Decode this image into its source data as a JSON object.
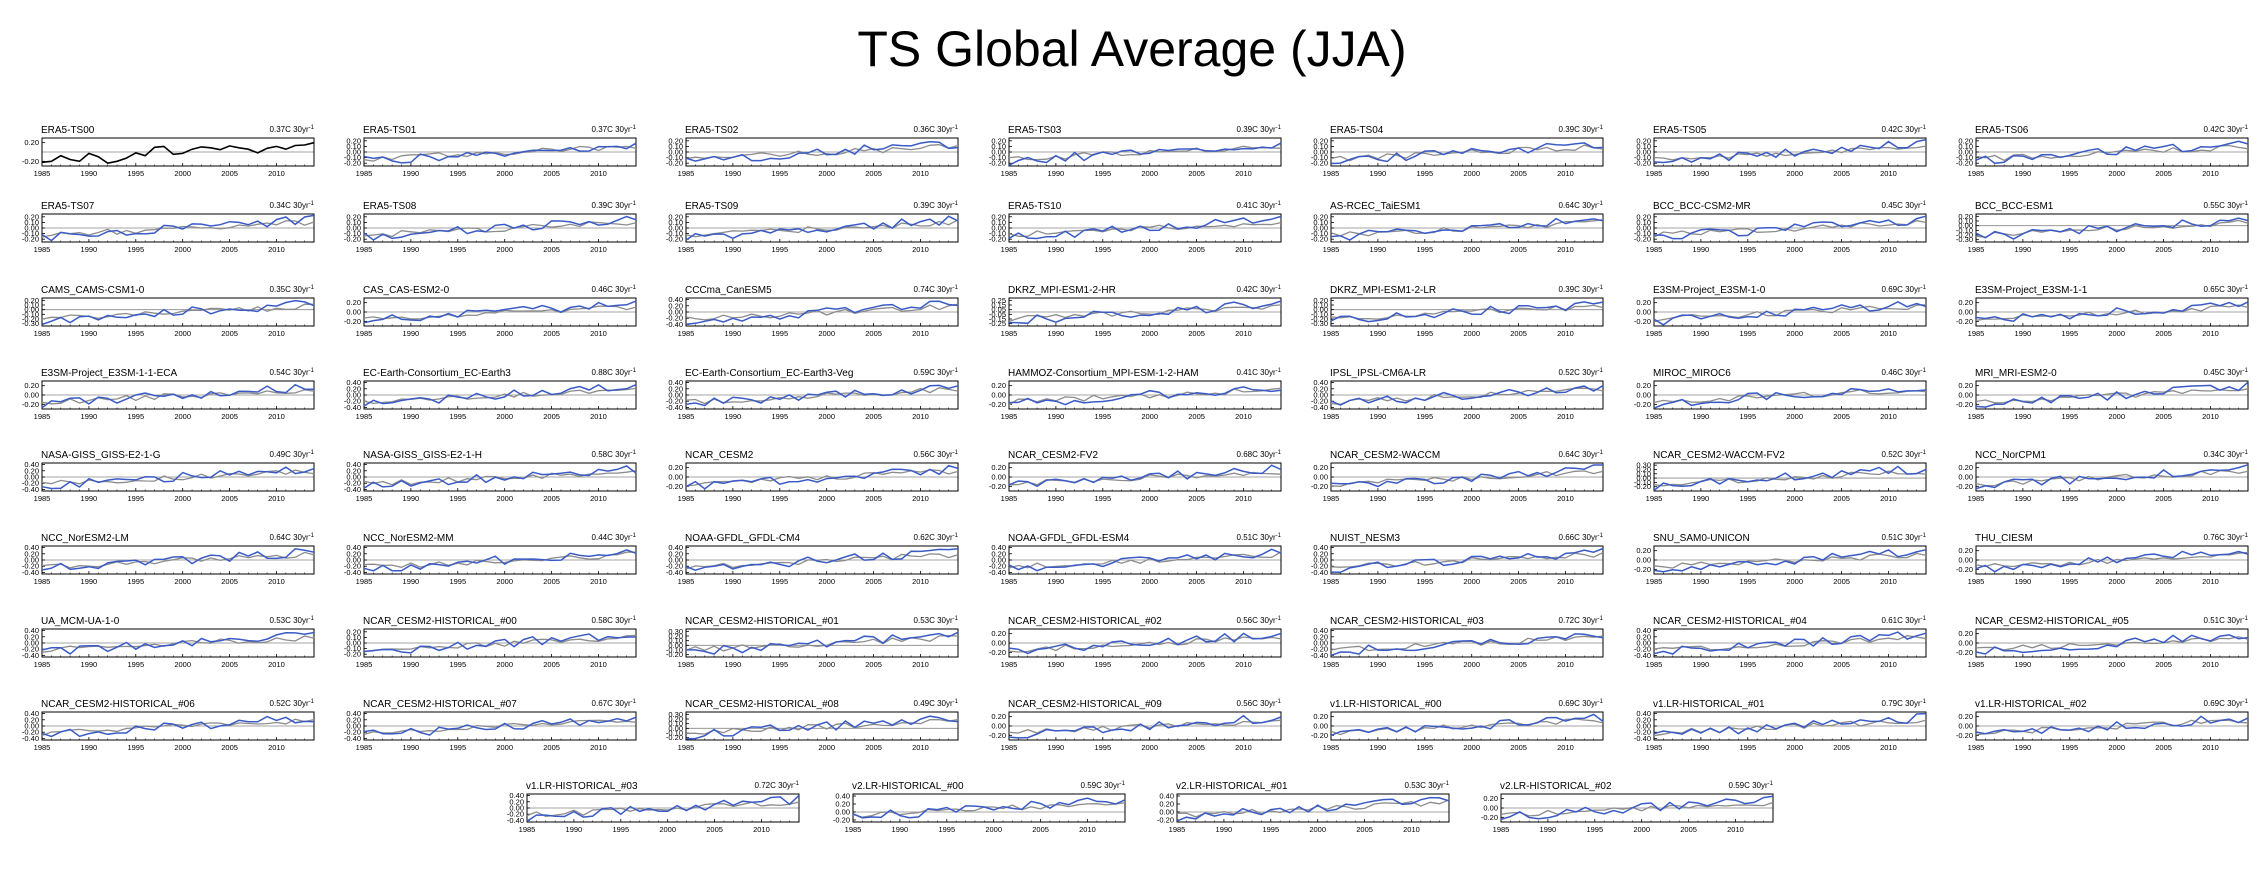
{
  "title": "TS Global Average (JJA)",
  "colors": {
    "reference": "#000000",
    "observation": "#8c8c8c",
    "model": "#3a5bc7",
    "zero": "#888888"
  },
  "chart_data": {
    "type": "line",
    "x_range": [
      1985,
      2014
    ],
    "x_ticks": [
      1985,
      1990,
      1995,
      2000,
      2005,
      2010
    ],
    "x_tick_labels": [
      "1985",
      "1990",
      "1995",
      "2000",
      "2005",
      "2010"
    ],
    "reference_series": "ERA5-TS00",
    "reference_values": [
      -0.22,
      -0.2,
      -0.08,
      -0.16,
      -0.2,
      -0.03,
      -0.1,
      -0.24,
      -0.2,
      -0.13,
      -0.02,
      -0.08,
      0.1,
      0.12,
      -0.05,
      -0.03,
      0.06,
      0.11,
      0.09,
      0.05,
      0.13,
      0.09,
      0.06,
      -0.02,
      0.08,
      0.12,
      0.06,
      0.14,
      0.15,
      0.2
    ],
    "panels": [
      {
        "name": "ERA5-TS00",
        "trend": "0.37C 30yr",
        "ylim": [
          -0.3,
          0.3
        ],
        "yticks": [
          -0.2,
          0.2
        ],
        "reference_only": true
      },
      {
        "name": "ERA5-TS01",
        "trend": "0.37C 30yr",
        "ylim": [
          -0.25,
          0.25
        ],
        "yticks": [
          -0.2,
          -0.1,
          0,
          0.1,
          0.2
        ],
        "seed": 1
      },
      {
        "name": "ERA5-TS02",
        "trend": "0.36C 30yr",
        "ylim": [
          -0.25,
          0.25
        ],
        "yticks": [
          -0.2,
          -0.1,
          0,
          0.1,
          0.2
        ],
        "seed": 2
      },
      {
        "name": "ERA5-TS03",
        "trend": "0.39C 30yr",
        "ylim": [
          -0.25,
          0.25
        ],
        "yticks": [
          -0.2,
          -0.1,
          0,
          0.1,
          0.2
        ],
        "seed": 3
      },
      {
        "name": "ERA5-TS04",
        "trend": "0.39C 30yr",
        "ylim": [
          -0.25,
          0.25
        ],
        "yticks": [
          -0.2,
          -0.1,
          0,
          0.1,
          0.2
        ],
        "seed": 4
      },
      {
        "name": "ERA5-TS05",
        "trend": "0.42C 30yr",
        "ylim": [
          -0.25,
          0.25
        ],
        "yticks": [
          -0.2,
          -0.1,
          0,
          0.1,
          0.2
        ],
        "seed": 5
      },
      {
        "name": "ERA5-TS06",
        "trend": "0.42C 30yr",
        "ylim": [
          -0.25,
          0.25
        ],
        "yticks": [
          -0.2,
          -0.1,
          0,
          0.1,
          0.2
        ],
        "seed": 6
      },
      {
        "name": "ERA5-TS07",
        "trend": "0.34C 30yr",
        "ylim": [
          -0.25,
          0.25
        ],
        "yticks": [
          -0.2,
          -0.1,
          0,
          0.1,
          0.2
        ],
        "seed": 7
      },
      {
        "name": "ERA5-TS08",
        "trend": "0.39C 30yr",
        "ylim": [
          -0.25,
          0.25
        ],
        "yticks": [
          -0.2,
          -0.1,
          0,
          0.1,
          0.2
        ],
        "seed": 8
      },
      {
        "name": "ERA5-TS09",
        "trend": "0.39C 30yr",
        "ylim": [
          -0.25,
          0.25
        ],
        "yticks": [
          -0.2,
          -0.1,
          0,
          0.1,
          0.2
        ],
        "seed": 9
      },
      {
        "name": "ERA5-TS10",
        "trend": "0.41C 30yr",
        "ylim": [
          -0.25,
          0.25
        ],
        "yticks": [
          -0.2,
          -0.1,
          0,
          0.1,
          0.2
        ],
        "seed": 10
      },
      {
        "name": "AS-RCEC_TaiESM1",
        "trend": "0.64C 30yr",
        "ylim": [
          -0.25,
          0.25
        ],
        "yticks": [
          -0.2,
          -0.1,
          0,
          0.1,
          0.2
        ],
        "seed": 11
      },
      {
        "name": "BCC_BCC-CSM2-MR",
        "trend": "0.45C 30yr",
        "ylim": [
          -0.25,
          0.25
        ],
        "yticks": [
          -0.2,
          -0.1,
          0,
          0.1,
          0.2
        ],
        "seed": 12
      },
      {
        "name": "BCC_BCC-ESM1",
        "trend": "0.55C 30yr",
        "ylim": [
          -0.35,
          0.25
        ],
        "yticks": [
          -0.3,
          -0.2,
          -0.1,
          0,
          0.1,
          0.2
        ],
        "seed": 13
      },
      {
        "name": "CAMS_CAMS-CSM1-0",
        "trend": "0.35C 30yr",
        "ylim": [
          -0.35,
          0.25
        ],
        "yticks": [
          -0.3,
          -0.2,
          -0.1,
          0,
          0.1,
          0.2
        ],
        "seed": 14
      },
      {
        "name": "CAS_CAS-ESM2-0",
        "trend": "0.46C 30yr",
        "ylim": [
          -0.3,
          0.3
        ],
        "yticks": [
          -0.2,
          0,
          0.2
        ],
        "seed": 15
      },
      {
        "name": "CCCma_CanESM5",
        "trend": "0.74C 30yr",
        "ylim": [
          -0.45,
          0.45
        ],
        "yticks": [
          -0.4,
          -0.2,
          0,
          0.2,
          0.4
        ],
        "seed": 16
      },
      {
        "name": "DKRZ_MPI-ESM1-2-HR",
        "trend": "0.42C 30yr",
        "ylim": [
          -0.3,
          0.3
        ],
        "yticks": [
          -0.25,
          -0.15,
          -0.05,
          0.05,
          0.15,
          0.25
        ],
        "seed": 17
      },
      {
        "name": "DKRZ_MPI-ESM1-2-LR",
        "trend": "0.39C 30yr",
        "ylim": [
          -0.35,
          0.25
        ],
        "yticks": [
          -0.3,
          -0.2,
          -0.1,
          0,
          0.1,
          0.2
        ],
        "seed": 18
      },
      {
        "name": "E3SM-Project_E3SM-1-0",
        "trend": "0.69C 30yr",
        "ylim": [
          -0.3,
          0.3
        ],
        "yticks": [
          -0.2,
          0,
          0.2
        ],
        "seed": 19
      },
      {
        "name": "E3SM-Project_E3SM-1-1",
        "trend": "0.65C 30yr",
        "ylim": [
          -0.3,
          0.3
        ],
        "yticks": [
          -0.2,
          0,
          0.2
        ],
        "seed": 20
      },
      {
        "name": "E3SM-Project_E3SM-1-1-ECA",
        "trend": "0.54C 30yr",
        "ylim": [
          -0.3,
          0.3
        ],
        "yticks": [
          -0.2,
          0,
          0.2
        ],
        "seed": 21
      },
      {
        "name": "EC-Earth-Consortium_EC-Earth3",
        "trend": "0.88C 30yr",
        "ylim": [
          -0.45,
          0.45
        ],
        "yticks": [
          -0.4,
          -0.2,
          0,
          0.2,
          0.4
        ],
        "seed": 22
      },
      {
        "name": "EC-Earth-Consortium_EC-Earth3-Veg",
        "trend": "0.59C 30yr",
        "ylim": [
          -0.45,
          0.45
        ],
        "yticks": [
          -0.4,
          -0.2,
          0,
          0.2,
          0.4
        ],
        "seed": 23
      },
      {
        "name": "HAMMOZ-Consortium_MPI-ESM-1-2-HAM",
        "trend": "0.41C 30yr",
        "ylim": [
          -0.3,
          0.3
        ],
        "yticks": [
          -0.2,
          0,
          0.2
        ],
        "seed": 24
      },
      {
        "name": "IPSL_IPSL-CM6A-LR",
        "trend": "0.52C 30yr",
        "ylim": [
          -0.45,
          0.45
        ],
        "yticks": [
          -0.4,
          -0.2,
          0,
          0.2,
          0.4
        ],
        "seed": 25
      },
      {
        "name": "MIROC_MIROC6",
        "trend": "0.46C 30yr",
        "ylim": [
          -0.3,
          0.3
        ],
        "yticks": [
          -0.2,
          0,
          0.2
        ],
        "seed": 26
      },
      {
        "name": "MRI_MRI-ESM2-0",
        "trend": "0.45C 30yr",
        "ylim": [
          -0.3,
          0.3
        ],
        "yticks": [
          -0.2,
          0,
          0.2
        ],
        "seed": 27
      },
      {
        "name": "NASA-GISS_GISS-E2-1-G",
        "trend": "0.49C 30yr",
        "ylim": [
          -0.45,
          0.45
        ],
        "yticks": [
          -0.4,
          -0.2,
          0,
          0.2,
          0.4
        ],
        "seed": 28
      },
      {
        "name": "NASA-GISS_GISS-E2-1-H",
        "trend": "0.58C 30yr",
        "ylim": [
          -0.45,
          0.45
        ],
        "yticks": [
          -0.4,
          -0.2,
          0,
          0.2,
          0.4
        ],
        "seed": 29
      },
      {
        "name": "NCAR_CESM2",
        "trend": "0.56C 30yr",
        "ylim": [
          -0.3,
          0.3
        ],
        "yticks": [
          -0.2,
          0,
          0.2
        ],
        "seed": 30
      },
      {
        "name": "NCAR_CESM2-FV2",
        "trend": "0.68C 30yr",
        "ylim": [
          -0.3,
          0.3
        ],
        "yticks": [
          -0.2,
          0,
          0.2
        ],
        "seed": 31
      },
      {
        "name": "NCAR_CESM2-WACCM",
        "trend": "0.64C 30yr",
        "ylim": [
          -0.3,
          0.3
        ],
        "yticks": [
          -0.2,
          0,
          0.2
        ],
        "seed": 32
      },
      {
        "name": "NCAR_CESM2-WACCM-FV2",
        "trend": "0.52C 30yr",
        "ylim": [
          -0.3,
          0.35
        ],
        "yticks": [
          -0.2,
          -0.1,
          0,
          0.1,
          0.2,
          0.3
        ],
        "seed": 33
      },
      {
        "name": "NCC_NorCPM1",
        "trend": "0.34C 30yr",
        "ylim": [
          -0.3,
          0.3
        ],
        "yticks": [
          -0.2,
          0,
          0.2
        ],
        "seed": 34
      },
      {
        "name": "NCC_NorESM2-LM",
        "trend": "0.64C 30yr",
        "ylim": [
          -0.45,
          0.45
        ],
        "yticks": [
          -0.4,
          -0.2,
          0,
          0.2,
          0.4
        ],
        "seed": 35
      },
      {
        "name": "NCC_NorESM2-MM",
        "trend": "0.44C 30yr",
        "ylim": [
          -0.45,
          0.45
        ],
        "yticks": [
          -0.4,
          -0.2,
          0,
          0.2,
          0.4
        ],
        "seed": 36
      },
      {
        "name": "NOAA-GFDL_GFDL-CM4",
        "trend": "0.62C 30yr",
        "ylim": [
          -0.45,
          0.45
        ],
        "yticks": [
          -0.4,
          -0.2,
          0,
          0.2,
          0.4
        ],
        "seed": 37
      },
      {
        "name": "NOAA-GFDL_GFDL-ESM4",
        "trend": "0.51C 30yr",
        "ylim": [
          -0.45,
          0.45
        ],
        "yticks": [
          -0.4,
          -0.2,
          0,
          0.2,
          0.4
        ],
        "seed": 38
      },
      {
        "name": "NUIST_NESM3",
        "trend": "0.66C 30yr",
        "ylim": [
          -0.45,
          0.45
        ],
        "yticks": [
          -0.4,
          -0.2,
          0,
          0.2,
          0.4
        ],
        "seed": 39
      },
      {
        "name": "SNU_SAM0-UNICON",
        "trend": "0.51C 30yr",
        "ylim": [
          -0.3,
          0.3
        ],
        "yticks": [
          -0.2,
          0,
          0.2
        ],
        "seed": 40
      },
      {
        "name": "THU_CIESM",
        "trend": "0.76C 30yr",
        "ylim": [
          -0.3,
          0.3
        ],
        "yticks": [
          -0.2,
          0,
          0.2
        ],
        "seed": 41
      },
      {
        "name": "UA_MCM-UA-1-0",
        "trend": "0.53C 30yr",
        "ylim": [
          -0.45,
          0.45
        ],
        "yticks": [
          -0.4,
          -0.2,
          0,
          0.2,
          0.4
        ],
        "seed": 42
      },
      {
        "name": "NCAR_CESM2-HISTORICAL_#00",
        "trend": "0.58C 30yr",
        "ylim": [
          -0.25,
          0.25
        ],
        "yticks": [
          -0.2,
          -0.1,
          0,
          0.1,
          0.2
        ],
        "seed": 43
      },
      {
        "name": "NCAR_CESM2-HISTORICAL_#01",
        "trend": "0.53C 30yr",
        "ylim": [
          -0.25,
          0.35
        ],
        "yticks": [
          -0.2,
          -0.1,
          0,
          0.1,
          0.2,
          0.3
        ],
        "seed": 44
      },
      {
        "name": "NCAR_CESM2-HISTORICAL_#02",
        "trend": "0.56C 30yr",
        "ylim": [
          -0.3,
          0.3
        ],
        "yticks": [
          -0.2,
          0,
          0.2
        ],
        "seed": 45
      },
      {
        "name": "NCAR_CESM2-HISTORICAL_#03",
        "trend": "0.72C 30yr",
        "ylim": [
          -0.45,
          0.45
        ],
        "yticks": [
          -0.4,
          -0.2,
          0,
          0.2,
          0.4
        ],
        "seed": 46
      },
      {
        "name": "NCAR_CESM2-HISTORICAL_#04",
        "trend": "0.61C 30yr",
        "ylim": [
          -0.45,
          0.45
        ],
        "yticks": [
          -0.4,
          -0.2,
          0,
          0.2,
          0.4
        ],
        "seed": 47
      },
      {
        "name": "NCAR_CESM2-HISTORICAL_#05",
        "trend": "0.51C 30yr",
        "ylim": [
          -0.3,
          0.3
        ],
        "yticks": [
          -0.2,
          0,
          0.2
        ],
        "seed": 48
      },
      {
        "name": "NCAR_CESM2-HISTORICAL_#06",
        "trend": "0.52C 30yr",
        "ylim": [
          -0.45,
          0.45
        ],
        "yticks": [
          -0.4,
          -0.2,
          0,
          0.2,
          0.4
        ],
        "seed": 49
      },
      {
        "name": "NCAR_CESM2-HISTORICAL_#07",
        "trend": "0.67C 30yr",
        "ylim": [
          -0.45,
          0.45
        ],
        "yticks": [
          -0.4,
          -0.2,
          0,
          0.2,
          0.4
        ],
        "seed": 50
      },
      {
        "name": "NCAR_CESM2-HISTORICAL_#08",
        "trend": "0.49C 30yr",
        "ylim": [
          -0.25,
          0.35
        ],
        "yticks": [
          -0.2,
          -0.1,
          0,
          0.1,
          0.2,
          0.3
        ],
        "seed": 51
      },
      {
        "name": "NCAR_CESM2-HISTORICAL_#09",
        "trend": "0.56C 30yr",
        "ylim": [
          -0.3,
          0.3
        ],
        "yticks": [
          -0.2,
          0,
          0.2
        ],
        "seed": 52
      },
      {
        "name": "v1.LR-HISTORICAL_#00",
        "trend": "0.69C 30yr",
        "ylim": [
          -0.3,
          0.3
        ],
        "yticks": [
          -0.2,
          0,
          0.2
        ],
        "seed": 53
      },
      {
        "name": "v1.LR-HISTORICAL_#01",
        "trend": "0.79C 30yr",
        "ylim": [
          -0.45,
          0.45
        ],
        "yticks": [
          -0.4,
          -0.2,
          0,
          0.2,
          0.4
        ],
        "seed": 54
      },
      {
        "name": "v1.LR-HISTORICAL_#02",
        "trend": "0.69C 30yr",
        "ylim": [
          -0.3,
          0.3
        ],
        "yticks": [
          -0.2,
          0,
          0.2
        ],
        "seed": 55
      },
      {
        "name": "v1.LR-HISTORICAL_#03",
        "trend": "0.72C 30yr",
        "ylim": [
          -0.45,
          0.45
        ],
        "yticks": [
          -0.4,
          -0.2,
          0,
          0.2,
          0.4
        ],
        "seed": 56
      },
      {
        "name": "v2.LR-HISTORICAL_#00",
        "trend": "0.59C 30yr",
        "ylim": [
          -0.25,
          0.45
        ],
        "yticks": [
          -0.2,
          0,
          0.2,
          0.4
        ],
        "seed": 57
      },
      {
        "name": "v2.LR-HISTORICAL_#01",
        "trend": "0.53C 30yr",
        "ylim": [
          -0.25,
          0.45
        ],
        "yticks": [
          -0.2,
          0,
          0.2,
          0.4
        ],
        "seed": 58
      },
      {
        "name": "v2.LR-HISTORICAL_#02",
        "trend": "0.59C 30yr",
        "ylim": [
          -0.3,
          0.3
        ],
        "yticks": [
          -0.2,
          0,
          0.2
        ],
        "seed": 59
      }
    ]
  }
}
